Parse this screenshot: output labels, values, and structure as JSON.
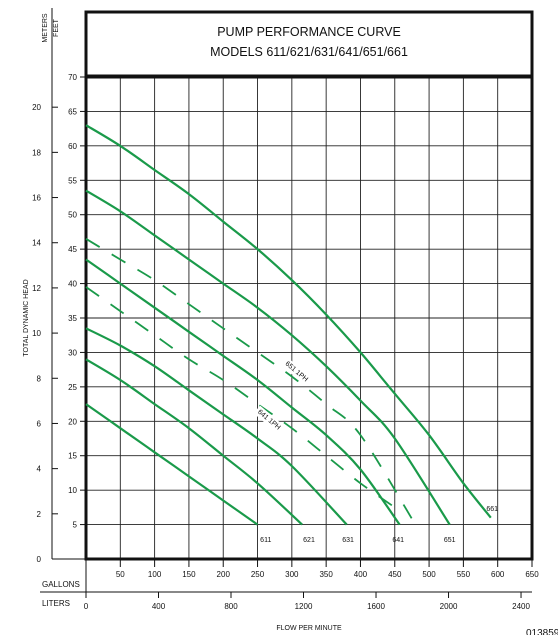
{
  "chart_data": {
    "type": "line",
    "title_line1": "PUMP PERFORMANCE CURVE",
    "title_line2": "MODELS 611/621/631/641/651/661",
    "left_unit_meters": "METERS",
    "left_unit_feet": "FEET",
    "ylabel": "TOTAL DYNAMIC HEAD",
    "xlabel": "FLOW PER MINUTE",
    "gallons_label": "GALLONS",
    "liters_label": "LITERS",
    "figure_code": "013859",
    "xlim_gallons": [
      0,
      650
    ],
    "ylim_feet": [
      0,
      70
    ],
    "feet_ticks": [
      5,
      10,
      15,
      20,
      25,
      30,
      35,
      40,
      45,
      50,
      55,
      60,
      65,
      70
    ],
    "meter_ticks": [
      0,
      2,
      4,
      6,
      8,
      10,
      12,
      14,
      16,
      18,
      20
    ],
    "gallon_ticks": [
      50,
      100,
      150,
      200,
      250,
      300,
      350,
      400,
      450,
      500,
      550,
      600,
      650
    ],
    "liter_ticks": [
      0,
      400,
      800,
      1200,
      1600,
      2000,
      2400
    ],
    "grid": true,
    "line_color": "#1a9a4a",
    "series": [
      {
        "name": "611",
        "style": "solid",
        "x": [
          0,
          50,
          100,
          150,
          200,
          250
        ],
        "y": [
          22.5,
          19,
          15.5,
          12,
          8.5,
          5
        ],
        "label_at": [
          262,
          2.5
        ]
      },
      {
        "name": "621",
        "style": "solid",
        "x": [
          0,
          50,
          100,
          150,
          200,
          250,
          315
        ],
        "y": [
          29,
          26,
          22.5,
          19,
          15,
          11,
          5
        ],
        "label_at": [
          325,
          2.5
        ]
      },
      {
        "name": "631",
        "style": "solid",
        "x": [
          0,
          50,
          100,
          150,
          200,
          250,
          300,
          380
        ],
        "y": [
          33.5,
          31,
          28,
          24.5,
          21,
          17.5,
          13.5,
          5
        ],
        "label_at": [
          382,
          2.5
        ]
      },
      {
        "name": "641",
        "style": "solid",
        "x": [
          0,
          50,
          100,
          150,
          200,
          250,
          300,
          350,
          400,
          457
        ],
        "y": [
          43.5,
          40,
          36.5,
          33,
          29.5,
          26,
          22,
          18,
          13,
          5
        ],
        "label_at": [
          455,
          2.5
        ]
      },
      {
        "name": "651",
        "style": "solid",
        "x": [
          0,
          50,
          100,
          150,
          200,
          250,
          300,
          350,
          400,
          450,
          530
        ],
        "y": [
          53.5,
          50.5,
          47,
          43.5,
          40,
          36.5,
          32.5,
          28,
          23,
          17.5,
          5
        ],
        "label_at": [
          530,
          2.5
        ]
      },
      {
        "name": "661",
        "style": "solid",
        "x": [
          0,
          50,
          100,
          150,
          200,
          250,
          300,
          350,
          400,
          450,
          500,
          550,
          590
        ],
        "y": [
          63,
          60,
          56.5,
          53,
          49,
          45,
          40.5,
          35.5,
          30,
          24,
          18,
          11,
          6
        ],
        "label_at": [
          592,
          7
        ]
      },
      {
        "name": "641 1PH",
        "style": "dashed",
        "x": [
          0,
          50,
          100,
          150,
          200,
          250,
          300,
          350,
          400,
          450
        ],
        "y": [
          39.5,
          36,
          32.5,
          29,
          26,
          22.5,
          19,
          15,
          11,
          7.5
        ],
        "label_at": [
          265,
          20
        ],
        "label_rotate": 40
      },
      {
        "name": "651 1PH",
        "style": "dashed",
        "x": [
          0,
          50,
          100,
          150,
          200,
          250,
          300,
          350,
          400,
          480
        ],
        "y": [
          46.5,
          43.5,
          40.5,
          37,
          33.5,
          30,
          26.5,
          22.5,
          18,
          5
        ],
        "label_at": [
          305,
          27
        ],
        "label_rotate": 40
      }
    ]
  }
}
